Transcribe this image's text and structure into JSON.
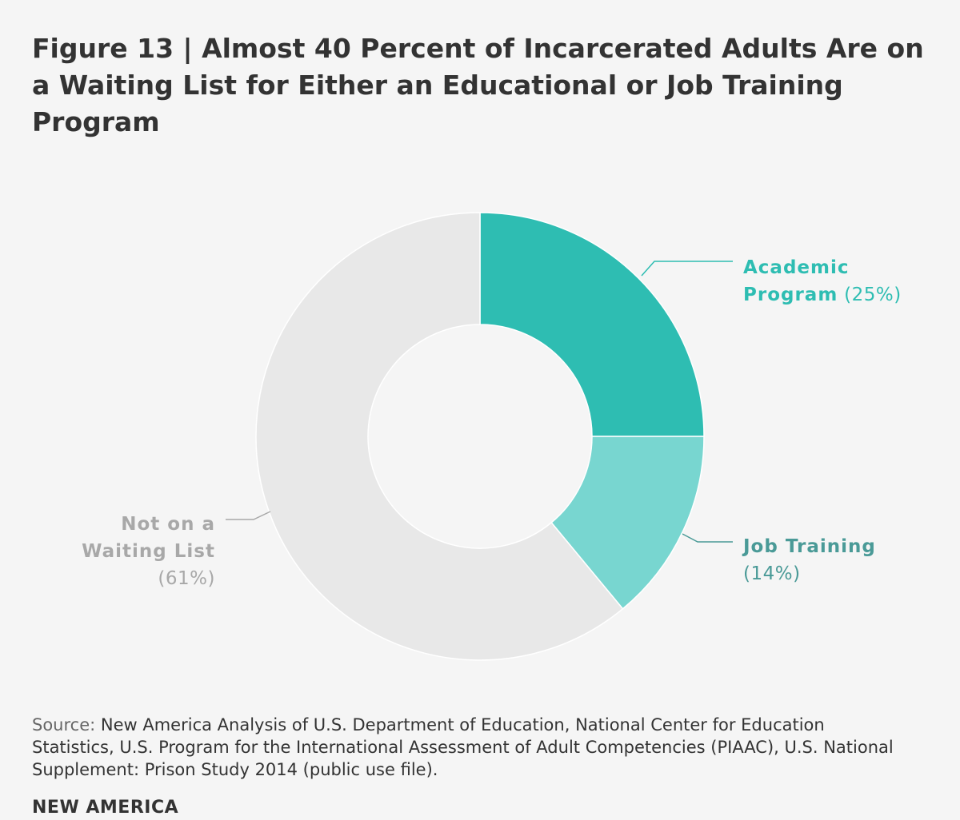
{
  "header": {
    "title": "Figure 13 | Almost 40 Percent of Incarcerated Adults Are on a Waiting List for Either an Educational or Job Training Program"
  },
  "chart_data": {
    "type": "pie",
    "variant": "donut",
    "title": "Figure 13 | Almost 40 Percent of Incarcerated Adults Are on a Waiting List for Either an Educational or Job Training Program",
    "slices": [
      {
        "name": "Academic Program",
        "label_lines": [
          "Academic",
          "Program"
        ],
        "pct_label": "(25%)",
        "value": 25,
        "color": "#2ebdb2",
        "label_color": "#2ebdb2",
        "pct_color": "#2ebdb2"
      },
      {
        "name": "Job Training",
        "label_lines": [
          "Job Training"
        ],
        "pct_label": "(14%)",
        "value": 14,
        "color": "#78d6d0",
        "label_color": "#4a9a97",
        "pct_color": "#4a9a97"
      },
      {
        "name": "Not on a Waiting List",
        "label_lines": [
          "Not on a",
          "Waiting List"
        ],
        "pct_label": "(61%)",
        "value": 61,
        "color": "#e8e8e8",
        "label_color": "#a8a8a8",
        "pct_color": "#a8a8a8"
      }
    ]
  },
  "footer": {
    "source_label": "Source:",
    "source_text": " New America Analysis of U.S. Department of Education, National Center for Education Statistics, U.S. Program for the International Assessment of Adult Competencies (PIAAC), U.S. National Supplement: Prison Study 2014 (public use file).",
    "brand": "NEW AMERICA"
  }
}
